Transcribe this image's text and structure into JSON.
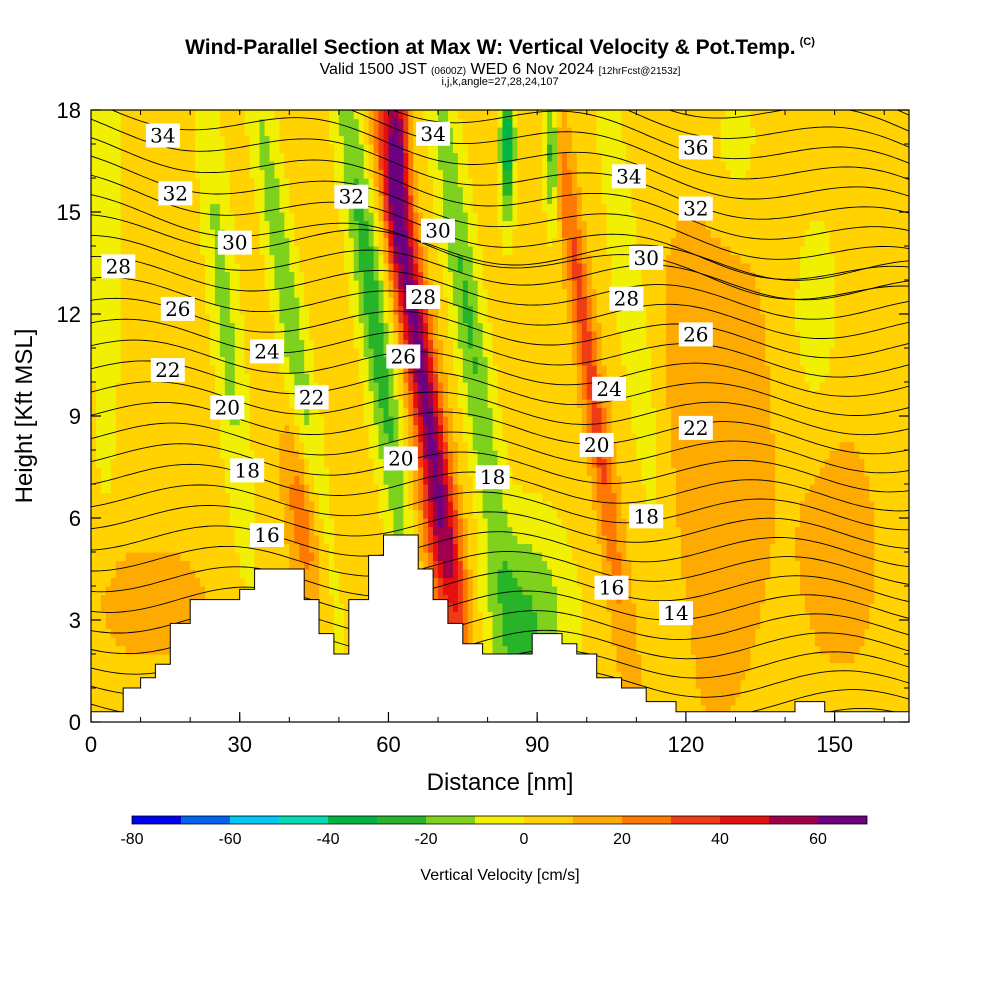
{
  "header": {
    "title": "Wind-Parallel Section at Max W: Vertical Velocity & Pot.Temp.",
    "copyright": "(C)",
    "valid_prefix": "Valid 1500 JST",
    "valid_utc": "(0600Z)",
    "valid_date": "WED 6 Nov 2024",
    "forecast": "[12hrFcst@2153z]",
    "indices": "i,j,k,angle=27,28,24,107"
  },
  "chart_data": {
    "type": "heatmap",
    "xlabel": "Distance [nm]",
    "ylabel": "Height [Kft MSL]",
    "xlim": [
      0,
      165
    ],
    "ylim": [
      0,
      18
    ],
    "x_ticks": [
      "0",
      "30",
      "60",
      "90",
      "120",
      "150"
    ],
    "x_tick_values": [
      0,
      30,
      60,
      90,
      120,
      150
    ],
    "y_ticks": [
      "0",
      "3",
      "6",
      "9",
      "12",
      "15",
      "18"
    ],
    "y_tick_values": [
      0,
      3,
      6,
      9,
      12,
      15,
      18
    ],
    "terrain": [
      [
        0,
        0.3
      ],
      [
        6.5,
        0.3
      ],
      [
        6.5,
        1
      ],
      [
        10,
        1
      ],
      [
        10,
        1.3
      ],
      [
        13,
        1.3
      ],
      [
        13,
        1.7
      ],
      [
        16,
        1.7
      ],
      [
        16,
        2.9
      ],
      [
        20,
        2.9
      ],
      [
        20,
        3.6
      ],
      [
        30,
        3.6
      ],
      [
        30,
        3.9
      ],
      [
        33,
        3.9
      ],
      [
        33,
        4.5
      ],
      [
        43,
        4.5
      ],
      [
        43,
        3.6
      ],
      [
        46,
        3.6
      ],
      [
        46,
        2.6
      ],
      [
        49,
        2.6
      ],
      [
        49,
        2
      ],
      [
        52,
        2
      ],
      [
        52,
        3.6
      ],
      [
        56,
        3.6
      ],
      [
        56,
        4.9
      ],
      [
        59,
        4.9
      ],
      [
        59,
        5.5
      ],
      [
        66,
        5.5
      ],
      [
        66,
        4.5
      ],
      [
        69,
        4.5
      ],
      [
        69,
        3.6
      ],
      [
        72,
        3.6
      ],
      [
        72,
        2.9
      ],
      [
        75,
        2.9
      ],
      [
        75,
        2.3
      ],
      [
        79,
        2.3
      ],
      [
        79,
        2
      ],
      [
        89,
        2
      ],
      [
        89,
        2.6
      ],
      [
        95,
        2.6
      ],
      [
        95,
        2.3
      ],
      [
        98,
        2.3
      ],
      [
        98,
        2
      ],
      [
        102,
        2
      ],
      [
        102,
        1.3
      ],
      [
        107,
        1.3
      ],
      [
        107,
        1
      ],
      [
        112,
        1
      ],
      [
        112,
        0.6
      ],
      [
        118,
        0.6
      ],
      [
        118,
        0.3
      ],
      [
        142,
        0.3
      ],
      [
        142,
        0.6
      ],
      [
        148,
        0.6
      ],
      [
        148,
        0.3
      ],
      [
        165,
        0.3
      ]
    ],
    "velocity_features": [
      {
        "x": 66,
        "y": 11,
        "w": 60,
        "sx": 2.2,
        "sy": 6,
        "tilt": -0.25
      },
      {
        "x": 100,
        "y": 11,
        "w": 30,
        "sx": 1.6,
        "sy": 6,
        "tilt": -0.22
      },
      {
        "x": 43,
        "y": 6,
        "w": 25,
        "sx": 2.5,
        "sy": 2,
        "tilt": -0.2
      },
      {
        "x": 70,
        "y": 5,
        "w": 20,
        "sx": 3,
        "sy": 2,
        "tilt": -0.2
      },
      {
        "x": 12,
        "y": 3.5,
        "w": 15,
        "sx": 8,
        "sy": 1.2,
        "tilt": 0
      },
      {
        "x": 125,
        "y": 8,
        "w": 10,
        "sx": 12,
        "sy": 8,
        "tilt": 0
      },
      {
        "x": 152,
        "y": 5,
        "w": 10,
        "sx": 6,
        "sy": 3,
        "tilt": 0
      },
      {
        "x": 57,
        "y": 12,
        "w": -30,
        "sx": 2.2,
        "sy": 6,
        "tilt": -0.22
      },
      {
        "x": 76,
        "y": 12,
        "w": -25,
        "sx": 2.2,
        "sy": 6,
        "tilt": -0.22
      },
      {
        "x": 88,
        "y": 3,
        "w": -25,
        "sx": 6,
        "sy": 2,
        "tilt": 0
      },
      {
        "x": 27,
        "y": 12,
        "w": -18,
        "sx": 2,
        "sy": 5,
        "tilt": -0.15
      },
      {
        "x": 40,
        "y": 12,
        "w": -22,
        "sx": 2,
        "sy": 6,
        "tilt": -0.25
      },
      {
        "x": 110,
        "y": 11,
        "w": -15,
        "sx": 2.5,
        "sy": 6,
        "tilt": -0.2
      },
      {
        "x": 3,
        "y": 14,
        "w": -12,
        "sx": 2,
        "sy": 5,
        "tilt": 0
      },
      {
        "x": 130,
        "y": 17,
        "w": -12,
        "sx": 4,
        "sy": 1.5,
        "tilt": 0
      },
      {
        "x": 146,
        "y": 12,
        "w": -15,
        "sx": 3,
        "sy": 2,
        "tilt": 0
      },
      {
        "x": 62,
        "y": 17,
        "w": 40,
        "sx": 1.5,
        "sy": 2,
        "tilt": 0
      },
      {
        "x": 84,
        "y": 17,
        "w": -45,
        "sx": 1,
        "sy": 1.5,
        "tilt": 0
      },
      {
        "x": 93,
        "y": 17,
        "w": -35,
        "sx": 1,
        "sy": 1.5,
        "tilt": 0
      }
    ],
    "contour_labels": [
      {
        "text": "34",
        "x": 14.5,
        "y": 17.25
      },
      {
        "text": "32",
        "x": 17,
        "y": 15.55
      },
      {
        "text": "30",
        "x": 29,
        "y": 14.1
      },
      {
        "text": "28",
        "x": 5.5,
        "y": 13.4
      },
      {
        "text": "26",
        "x": 17.5,
        "y": 12.15
      },
      {
        "text": "22",
        "x": 15.5,
        "y": 10.35
      },
      {
        "text": "24",
        "x": 35.5,
        "y": 10.9
      },
      {
        "text": "20",
        "x": 27.5,
        "y": 9.25
      },
      {
        "text": "22",
        "x": 44.5,
        "y": 9.55
      },
      {
        "text": "18",
        "x": 31.5,
        "y": 7.4
      },
      {
        "text": "16",
        "x": 35.5,
        "y": 5.5
      },
      {
        "text": "32",
        "x": 52.5,
        "y": 15.45
      },
      {
        "text": "34",
        "x": 69,
        "y": 17.3
      },
      {
        "text": "30",
        "x": 70,
        "y": 14.45
      },
      {
        "text": "28",
        "x": 67,
        "y": 12.5
      },
      {
        "text": "26",
        "x": 63,
        "y": 10.75
      },
      {
        "text": "20",
        "x": 62.5,
        "y": 7.75
      },
      {
        "text": "18",
        "x": 81,
        "y": 7.2
      },
      {
        "text": "24",
        "x": 104.5,
        "y": 9.8
      },
      {
        "text": "20",
        "x": 102,
        "y": 8.15
      },
      {
        "text": "34",
        "x": 108.5,
        "y": 16.05
      },
      {
        "text": "36",
        "x": 122,
        "y": 16.9
      },
      {
        "text": "32",
        "x": 122,
        "y": 15.1
      },
      {
        "text": "30",
        "x": 112,
        "y": 13.65
      },
      {
        "text": "28",
        "x": 108,
        "y": 12.45
      },
      {
        "text": "26",
        "x": 122,
        "y": 11.4
      },
      {
        "text": "22",
        "x": 122,
        "y": 8.65
      },
      {
        "text": "18",
        "x": 112,
        "y": 6.05
      },
      {
        "text": "16",
        "x": 105,
        "y": 3.95
      },
      {
        "text": "14",
        "x": 118,
        "y": 3.2
      }
    ]
  },
  "colorbar": {
    "label": "Vertical Velocity [cm/s]",
    "tick_labels": [
      "-80",
      "-60",
      "-40",
      "-20",
      "0",
      "20",
      "40",
      "60"
    ],
    "tick_values": [
      -80,
      -60,
      -40,
      -20,
      0,
      20,
      40,
      60
    ],
    "bounds": [
      -80,
      -70,
      -60,
      -50,
      -40,
      -30,
      -20,
      -10,
      0,
      10,
      20,
      30,
      40,
      50,
      60,
      70
    ],
    "colors": [
      "#0000f0",
      "#0064f0",
      "#00c8f5",
      "#00dcb4",
      "#00b446",
      "#28b428",
      "#7ed21e",
      "#f0f000",
      "#ffd200",
      "#ffaa00",
      "#ff7800",
      "#f03c14",
      "#e60f0f",
      "#a0004b",
      "#6e0082"
    ]
  }
}
